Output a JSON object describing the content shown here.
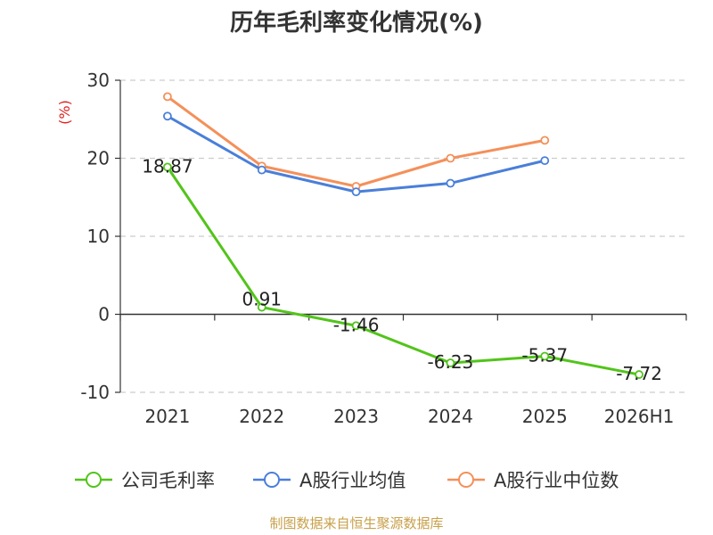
{
  "chart_data": {
    "type": "line",
    "title": "历年毛利率变化情况(%)",
    "unit_label": "(%)",
    "categories": [
      "2021",
      "2022",
      "2023",
      "2024",
      "2025",
      "2026H1"
    ],
    "ylim": [
      -10,
      30
    ],
    "yticks": [
      30,
      20,
      10,
      0,
      -10
    ],
    "grid": true,
    "legend_position": "bottom",
    "series": [
      {
        "name": "公司毛利率",
        "color": "#52c41a",
        "values": [
          18.87,
          0.91,
          -1.46,
          -6.23,
          -5.37,
          -7.72
        ],
        "labels": [
          "18.87",
          "0.91",
          "-1.46",
          "-6.23",
          "-5.37",
          "-7.72"
        ]
      },
      {
        "name": "A股行业均值",
        "color": "#4a7fd9",
        "values": [
          25.4,
          18.5,
          15.7,
          16.8,
          19.7,
          null
        ]
      },
      {
        "name": "A股行业中位数",
        "color": "#f4905a",
        "values": [
          27.9,
          19.0,
          16.4,
          20.0,
          22.3,
          null
        ]
      }
    ]
  },
  "source": "制图数据来自恒生聚源数据库"
}
